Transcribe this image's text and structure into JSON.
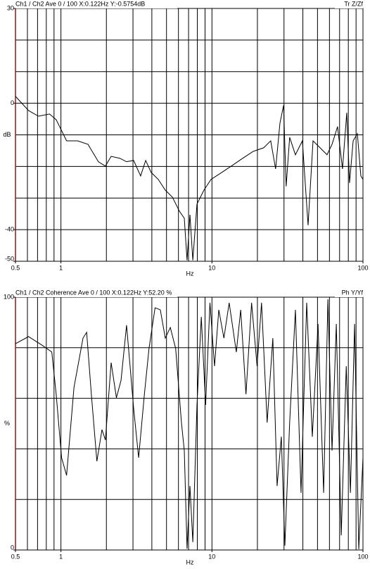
{
  "chart_data": [
    {
      "type": "line",
      "title": "Ch1 / Ch2  Ave 0 / 100  X:0.122Hz  Y:-0.5754dB",
      "title_right": "Tr Z/Zf",
      "xlabel": "Hz",
      "ylabel": "dB",
      "log_x": true,
      "xlim": [
        0.5,
        100
      ],
      "xticks": [
        0.5,
        1,
        10,
        100
      ],
      "xgrid": [
        0.6,
        0.7,
        0.8,
        0.9,
        1,
        2,
        3,
        4,
        5,
        6,
        7,
        8,
        9,
        10,
        20,
        30,
        40,
        50,
        60,
        70,
        80,
        90
      ],
      "ylim": [
        -50,
        30
      ],
      "yticks": [
        -50,
        -40,
        0,
        30
      ],
      "ygrid": [
        -40,
        -30,
        -20,
        -10,
        0,
        10,
        20
      ],
      "color": "#000000",
      "x": [
        0.5,
        0.61,
        0.71,
        0.84,
        0.93,
        1.09,
        1.29,
        1.51,
        1.77,
        1.97,
        2.15,
        2.45,
        2.72,
        3.03,
        3.37,
        3.64,
        3.96,
        4.41,
        4.91,
        5.47,
        6.08,
        6.56,
        6.84,
        7.15,
        7.47,
        7.96,
        8.85,
        9.86,
        11.6,
        13.6,
        16,
        18.8,
        22,
        24.5,
        26.4,
        28.2,
        29.8,
        31,
        32.7,
        35.7,
        39.7,
        43.3,
        46.7,
        52,
        57.8,
        62.4,
        67.9,
        73.2,
        78.1,
        81.5,
        86.1,
        91.8,
        96.8,
        100
      ],
      "values": [
        2.2,
        -2.3,
        -4.1,
        -3.4,
        -5.2,
        -11.9,
        -11.9,
        -13,
        -18.5,
        -19.9,
        -16.8,
        -17.4,
        -18.5,
        -18.1,
        -23,
        -18.1,
        -21.9,
        -24.1,
        -27.5,
        -29.7,
        -34.1,
        -36.4,
        -49.7,
        -35.3,
        -49.7,
        -31.9,
        -27.5,
        -24.1,
        -21.9,
        -19.7,
        -17.4,
        -15.2,
        -14.1,
        -11.9,
        -20.8,
        -6.3,
        -0.7,
        -26.3,
        -10.8,
        -16.3,
        -11.9,
        -38.6,
        -11.9,
        -14.1,
        -16.3,
        -13,
        -7.4,
        -20.8,
        -3,
        -25.2,
        -11.9,
        -9.6,
        -23,
        -24.1
      ]
    },
    {
      "type": "line",
      "title": "Ch1 / Ch2  Coherence Ave 0 / 100  X:0.122Hz  Y:52.20 %",
      "title_right": "Ph Y/Yf",
      "xlabel": "Hz",
      "ylabel": "%",
      "log_x": true,
      "xlim": [
        0.5,
        100
      ],
      "xticks": [
        0.5,
        1,
        10,
        100
      ],
      "xgrid": [
        0.6,
        0.7,
        0.8,
        0.9,
        1,
        2,
        3,
        4,
        5,
        6,
        7,
        8,
        9,
        10,
        20,
        30,
        40,
        50,
        60,
        70,
        80,
        90
      ],
      "ylim": [
        0,
        100
      ],
      "yticks": [
        0,
        100
      ],
      "ygrid": [
        20,
        40,
        60,
        80
      ],
      "color": "#000000",
      "x": [
        0.5,
        0.61,
        0.75,
        0.87,
        0.93,
        1.01,
        1.09,
        1.22,
        1.4,
        1.48,
        1.59,
        1.73,
        1.87,
        1.97,
        2.15,
        2.33,
        2.5,
        2.72,
        2.87,
        3.03,
        3.27,
        3.57,
        3.83,
        4.2,
        4.55,
        4.91,
        5.3,
        5.75,
        6.28,
        6.56,
        6.84,
        7.15,
        7.47,
        7.96,
        8.5,
        9.08,
        9.7,
        10.4,
        11.1,
        12,
        13,
        14.5,
        15.5,
        16.8,
        18.3,
        19.9,
        21.3,
        23.2,
        25.3,
        27,
        28.8,
        30.4,
        32.7,
        35.7,
        38.9,
        42.4,
        46.2,
        50.4,
        54.9,
        58.6,
        62.4,
        66.6,
        71.8,
        77.5,
        82.6,
        88,
        93.8,
        100
      ],
      "values": [
        81.6,
        84.4,
        81,
        78.3,
        61.6,
        36.5,
        29.5,
        64.3,
        83.8,
        86.1,
        61.6,
        35.1,
        47.6,
        43.5,
        74.1,
        60.2,
        67.1,
        88.9,
        72.7,
        56,
        36.5,
        61.6,
        79.7,
        95.8,
        95,
        83.8,
        88,
        79.7,
        50.4,
        39.3,
        0.5,
        25.3,
        3.1,
        57.4,
        92.2,
        57.4,
        97.8,
        72.7,
        95,
        83.8,
        97.8,
        78.3,
        95,
        61.6,
        97.8,
        72.7,
        97.8,
        50.4,
        83.8,
        25.3,
        44.8,
        1.7,
        50.4,
        95,
        22.6,
        97.8,
        44.8,
        89.4,
        22.6,
        99.2,
        39.3,
        89.4,
        5.8,
        72.7,
        22.6,
        89.4,
        0.3,
        36.5
      ]
    }
  ]
}
